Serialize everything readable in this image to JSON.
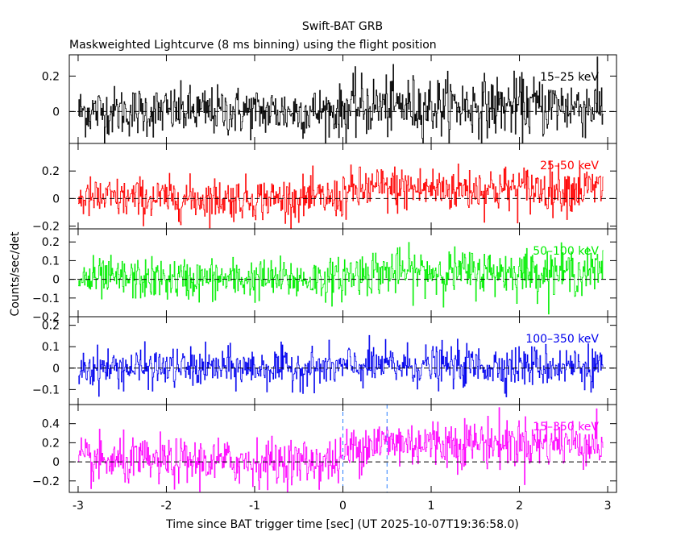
{
  "chart_data": {
    "type": "line",
    "title": "Swift-BAT GRB",
    "subtitle": "Maskweighted Lightcurve (8 ms binning) using the flight position",
    "xlabel": "Time since BAT trigger time [sec] (UT 2025-10-07T19:36:58.0)",
    "ylabel": "Counts/sec/det",
    "xlim": [
      -3.1,
      3.1
    ],
    "x_ticks": [
      "-3",
      "-2",
      "-1",
      "0",
      "1",
      "2",
      "3"
    ],
    "x_tick_values": [
      -3,
      -2,
      -1,
      0,
      1,
      2,
      3
    ],
    "data_range": [
      -3.0,
      2.95
    ],
    "bin_width": 0.008,
    "trigger_markers": [
      0,
      0.5
    ],
    "grid": false,
    "panels": [
      {
        "name": "15-25 keV",
        "label": "15–25 keV",
        "color": "#000000",
        "ylim": [
          -0.18,
          0.32
        ],
        "y_ticks": [
          "0",
          "0.2"
        ],
        "y_tick_values": [
          0,
          0.2
        ],
        "noise_before": 0.07,
        "noise_after": 0.085,
        "level_before": 0.0,
        "level_after": 0.03
      },
      {
        "name": "25-50 keV",
        "label": "25–50 keV",
        "color": "#ff0000",
        "ylim": [
          -0.22,
          0.4
        ],
        "y_ticks": [
          "−0.2",
          "0",
          "0.2"
        ],
        "y_tick_values": [
          -0.2,
          0,
          0.2
        ],
        "noise_before": 0.075,
        "noise_after": 0.085,
        "level_before": 0.0,
        "level_after": 0.07
      },
      {
        "name": "50-100 keV",
        "label": "50–100 keV",
        "color": "#00ee00",
        "ylim": [
          -0.2,
          0.27
        ],
        "y_ticks": [
          "−0.2",
          "−0.1",
          "0",
          "0.1",
          "0.2"
        ],
        "y_tick_values": [
          -0.2,
          -0.1,
          0,
          0.1,
          0.2
        ],
        "noise_before": 0.055,
        "noise_after": 0.06,
        "level_before": 0.0,
        "level_after": 0.04
      },
      {
        "name": "100-350 keV",
        "label": "100–350 keV",
        "color": "#0000ee",
        "ylim": [
          -0.17,
          0.24
        ],
        "y_ticks": [
          "−0.1",
          "0",
          "0.1",
          "0.2"
        ],
        "y_tick_values": [
          -0.1,
          0,
          0.1,
          0.2
        ],
        "noise_before": 0.045,
        "noise_after": 0.048,
        "level_before": 0.0,
        "level_after": 0.01
      },
      {
        "name": "15-350 keV",
        "label": "15–350 keV",
        "color": "#ff00ff",
        "ylim": [
          -0.32,
          0.6
        ],
        "y_ticks": [
          "−0.2",
          "0",
          "0.2",
          "0.4"
        ],
        "y_tick_values": [
          -0.2,
          0,
          0.2,
          0.4
        ],
        "noise_before": 0.12,
        "noise_after": 0.13,
        "level_before": 0.0,
        "level_after": 0.2
      }
    ]
  }
}
